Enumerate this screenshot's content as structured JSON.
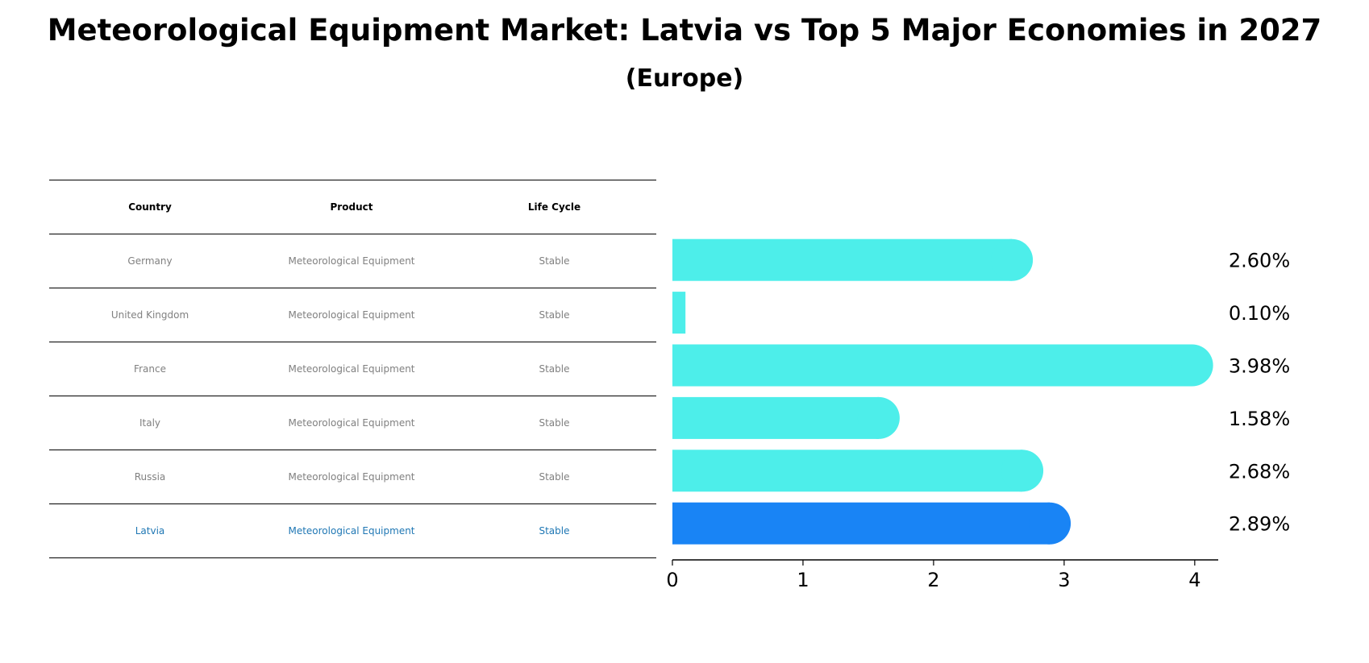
{
  "title": "Meteorological Equipment Market: Latvia vs Top 5 Major Economies in 2027",
  "subtitle": "(Europe)",
  "table": {
    "headers": [
      "Country",
      "Product",
      "Life Cycle"
    ],
    "rows": [
      {
        "country": "Germany",
        "product": "Meteorological Equipment",
        "life_cycle": "Stable"
      },
      {
        "country": "United Kingdom",
        "product": "Meteorological Equipment",
        "life_cycle": "Stable"
      },
      {
        "country": "France",
        "product": "Meteorological Equipment",
        "life_cycle": "Stable"
      },
      {
        "country": "Italy",
        "product": "Meteorological Equipment",
        "life_cycle": "Stable"
      },
      {
        "country": "Russia",
        "product": "Meteorological Equipment",
        "life_cycle": "Stable"
      },
      {
        "country": "Latvia",
        "product": "Meteorological Equipment",
        "life_cycle": "Stable"
      }
    ],
    "highlight_row": 5,
    "highlight_color": "#1f77b4",
    "text_color": "#808080"
  },
  "chart_data": {
    "type": "bar",
    "orientation": "horizontal",
    "categories": [
      "Germany",
      "United Kingdom",
      "France",
      "Italy",
      "Russia",
      "Latvia"
    ],
    "values": [
      2.6,
      0.1,
      3.98,
      1.58,
      2.68,
      2.89
    ],
    "value_labels": [
      "2.60%",
      "0.10%",
      "3.98%",
      "1.58%",
      "2.68%",
      "2.89%"
    ],
    "xlim": [
      0,
      4.18
    ],
    "xticks": [
      0,
      1,
      2,
      3,
      4
    ],
    "grid": false,
    "colors": {
      "default": "#4deeea",
      "highlight": "#1984f5"
    },
    "highlight_index": 5
  }
}
